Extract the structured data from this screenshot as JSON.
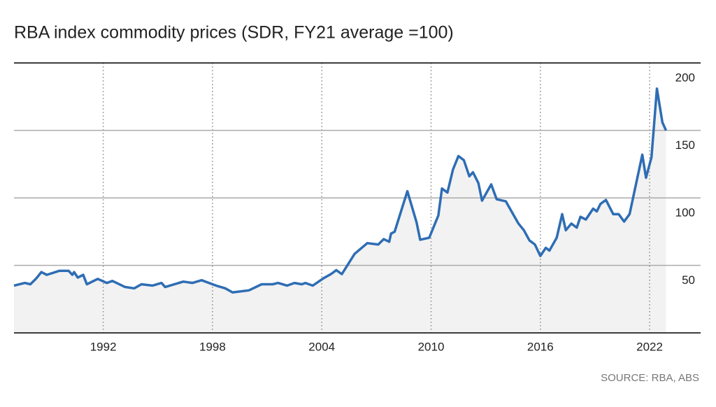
{
  "chart_data": {
    "type": "line",
    "title": "RBA index commodity prices (SDR, FY21 average =100)",
    "source": "SOURCE: RBA, ABS",
    "x": [
      1987.1,
      1987.7,
      1988.0,
      1988.3,
      1988.6,
      1988.9,
      1989.6,
      1990.1,
      1990.3,
      1990.4,
      1990.6,
      1990.9,
      1991.1,
      1991.7,
      1992.2,
      1992.5,
      1993.2,
      1993.7,
      1994.1,
      1994.7,
      1995.2,
      1995.4,
      1996.4,
      1996.9,
      1997.4,
      1998.2,
      1998.7,
      1999.1,
      2000.0,
      2000.7,
      2001.3,
      2001.6,
      2002.1,
      2002.5,
      2002.9,
      2003.1,
      2003.5,
      2004.1,
      2004.5,
      2004.8,
      2005.1,
      2005.8,
      2006.5,
      2007.1,
      2007.4,
      2007.7,
      2007.8,
      2008.0,
      2008.7,
      2009.2,
      2009.4,
      2009.9,
      2010.4,
      2010.6,
      2010.9,
      2011.2,
      2011.5,
      2011.8,
      2012.1,
      2012.3,
      2012.6,
      2012.8,
      2013.3,
      2013.6,
      2014.1,
      2014.8,
      2015.1,
      2015.4,
      2015.7,
      2016.0,
      2016.3,
      2016.5,
      2016.9,
      2017.2,
      2017.4,
      2017.7,
      2018.0,
      2018.2,
      2018.5,
      2018.9,
      2019.1,
      2019.3,
      2019.6,
      2020.0,
      2020.3,
      2020.6,
      2020.9,
      2021.6,
      2021.8,
      2022.1,
      2022.4,
      2022.7,
      2022.9
    ],
    "series": [
      {
        "name": "RBA index",
        "color": "#2e6db4",
        "values": [
          35,
          37,
          36,
          40,
          45,
          43,
          46,
          46,
          43,
          45,
          41,
          43,
          36,
          40,
          37,
          38.5,
          34,
          33,
          36,
          35,
          37,
          34,
          38,
          37,
          39,
          35,
          33,
          30,
          31.5,
          36,
          36,
          37,
          35,
          37,
          36,
          37,
          35,
          40.5,
          43.5,
          46.5,
          43.5,
          58.5,
          66.5,
          65.5,
          69.5,
          67.5,
          73.5,
          75,
          105,
          82,
          69,
          70.5,
          87,
          107,
          104,
          121,
          131,
          128,
          116,
          119,
          111,
          98,
          110,
          99,
          97.5,
          81,
          76,
          68.5,
          65.5,
          57,
          63,
          61,
          70.5,
          88,
          76,
          81,
          78,
          86,
          84,
          92,
          90,
          95.5,
          98.5,
          88,
          88,
          82.5,
          88,
          132,
          115,
          130,
          181,
          156,
          150
        ]
      }
    ],
    "xlim": [
      1987.1,
      2024.8
    ],
    "xticks": [
      1992,
      1998,
      2004,
      2010,
      2016,
      2022
    ],
    "ylim": [
      0,
      200
    ],
    "yticks": [
      50,
      100,
      150,
      200
    ],
    "grid": true,
    "area_fill": "#f2f2f2"
  }
}
